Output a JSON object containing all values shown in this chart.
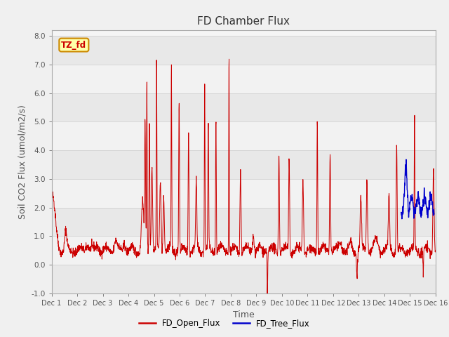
{
  "title": "FD Chamber Flux",
  "xlabel": "Time",
  "ylabel": "Soil CO2 Flux (umol/m2/s)",
  "ylim": [
    -1.0,
    8.2
  ],
  "yticks": [
    -1.0,
    0.0,
    1.0,
    2.0,
    3.0,
    4.0,
    5.0,
    6.0,
    7.0,
    8.0
  ],
  "xlim_start": 0,
  "xlim_end": 15,
  "xtick_labels": [
    "Dec 1",
    "Dec 2",
    "Dec 3",
    "Dec 4",
    "Dec 5",
    "Dec 6",
    "Dec 7",
    "Dec 8",
    "Dec 9",
    "Dec 10",
    "Dec 11",
    "Dec 12",
    "Dec 13",
    "Dec 14",
    "Dec 15",
    "Dec 16"
  ],
  "xtick_positions": [
    0,
    1,
    2,
    3,
    4,
    5,
    6,
    7,
    8,
    9,
    10,
    11,
    12,
    13,
    14,
    15
  ],
  "open_flux_color": "#cc0000",
  "tree_flux_color": "#0000cc",
  "fig_bg_color": "#f0f0f0",
  "annotation_text": "TZ_fd",
  "annotation_bg": "#ffffaa",
  "annotation_border": "#cc8800",
  "legend_labels": [
    "FD_Open_Flux",
    "FD_Tree_Flux"
  ],
  "title_fontsize": 11,
  "axis_label_fontsize": 9,
  "tick_fontsize": 7.5,
  "band_colors": [
    "#e8e8e8",
    "#f2f2f2"
  ]
}
